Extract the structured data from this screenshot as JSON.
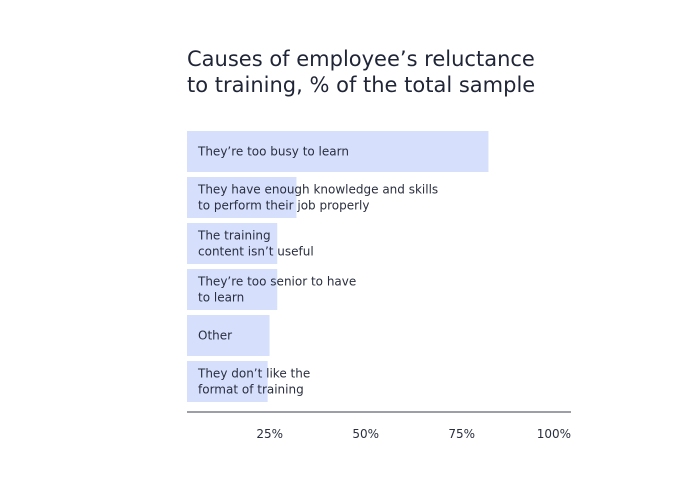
{
  "title_lines": [
    "Causes of employee’s reluctance",
    "to training, % of the total sample"
  ],
  "colors": {
    "bar": "#d6e0fd",
    "axis": "#3a3f4f",
    "text": "#1f2537"
  },
  "chart_data": {
    "type": "bar",
    "orientation": "horizontal",
    "title": "Causes of employee’s reluctance to training, % of the total sample",
    "categories": [
      [
        "They’re too busy to learn"
      ],
      [
        "They have enough knowledge and skills",
        "to perform their job properly"
      ],
      [
        "The training",
        "content isn’t useful"
      ],
      [
        "They’re too senior to have",
        "to learn"
      ],
      [
        "Other"
      ],
      [
        "They don’t like the",
        "format of training"
      ]
    ],
    "values": [
      78.5,
      28.5,
      23.5,
      23.5,
      21.5,
      21
    ],
    "xlim": [
      0,
      100
    ],
    "xticks": [
      25,
      50,
      75,
      100
    ],
    "xtick_labels": [
      "25%",
      "50%",
      "75%",
      "100%"
    ],
    "xlabel": "",
    "ylabel": "",
    "grid": false,
    "legend": "none"
  }
}
